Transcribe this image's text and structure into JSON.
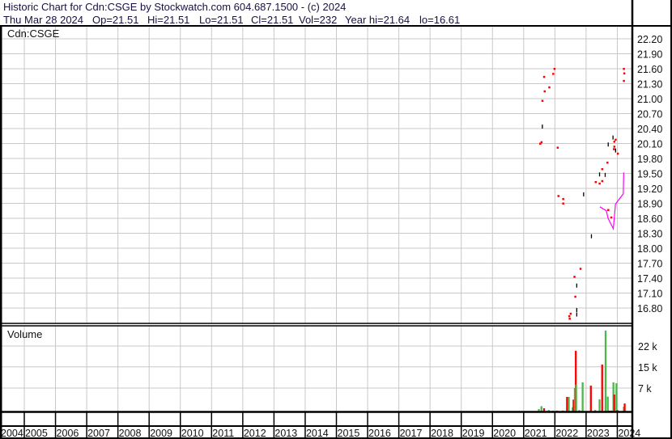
{
  "header": {
    "title": "Historic Chart for Cdn:CSGE by Stockwatch.com 604.687.1500 - (c) 2024",
    "date": "Thu Mar 28 2024",
    "open": "Op=21.51",
    "high": "Hi=21.51",
    "low": "Lo=21.51",
    "close": "Cl=21.51",
    "volume": "Vol=232",
    "year_high": "Year hi=21.64",
    "year_low": "lo=16.61"
  },
  "chart_data": [
    {
      "type": "scatter",
      "title": "Cdn:CSGE",
      "ylim": [
        16.5,
        22.3
      ],
      "y_ticks": [
        "22.20",
        "21.90",
        "21.60",
        "21.30",
        "21.00",
        "20.70",
        "20.40",
        "20.10",
        "19.80",
        "19.50",
        "19.20",
        "18.90",
        "18.60",
        "18.30",
        "18.00",
        "17.70",
        "17.40",
        "17.10",
        "16.80"
      ],
      "grid": true,
      "axis_position": "right",
      "colors": {
        "down": "#ff0000",
        "up": "#000000",
        "average": "#ff00ff"
      },
      "points": [
        {
          "date": "2021-07-10",
          "price": 20.1,
          "color": "down"
        },
        {
          "date": "2021-07-25",
          "price": 20.13,
          "color": "down"
        },
        {
          "date": "2021-08-05",
          "price": 20.44,
          "color": "up"
        },
        {
          "date": "2021-08-05",
          "price": 20.96,
          "color": "down"
        },
        {
          "date": "2021-08-25",
          "price": 21.44,
          "color": "down"
        },
        {
          "date": "2021-09-01",
          "price": 21.15,
          "color": "down"
        },
        {
          "date": "2021-10-25",
          "price": 21.23,
          "color": "down"
        },
        {
          "date": "2021-12-10",
          "price": 21.5,
          "color": "down"
        },
        {
          "date": "2021-12-25",
          "price": 21.6,
          "color": "down"
        },
        {
          "date": "2022-02-01",
          "price": 20.02,
          "color": "down"
        },
        {
          "date": "2022-02-10",
          "price": 19.05,
          "color": "down"
        },
        {
          "date": "2022-04-05",
          "price": 18.99,
          "color": "down"
        },
        {
          "date": "2022-04-05",
          "price": 18.9,
          "color": "down"
        },
        {
          "date": "2022-06-15",
          "price": 16.64,
          "color": "down"
        },
        {
          "date": "2022-06-20",
          "price": 16.59,
          "color": "down"
        },
        {
          "date": "2022-07-01",
          "price": 16.69,
          "color": "down"
        },
        {
          "date": "2022-08-15",
          "price": 17.43,
          "color": "down"
        },
        {
          "date": "2022-08-25",
          "price": 17.03,
          "color": "down"
        },
        {
          "date": "2022-09-12",
          "price": 17.25,
          "color": "up"
        },
        {
          "date": "2022-09-12",
          "price": 16.76,
          "color": "up"
        },
        {
          "date": "2022-09-12",
          "price": 16.67,
          "color": "up"
        },
        {
          "date": "2022-10-25",
          "price": 17.59,
          "color": "down"
        },
        {
          "date": "2022-12-01",
          "price": 19.08,
          "color": "up"
        },
        {
          "date": "2023-03-01",
          "price": 18.24,
          "color": "up"
        },
        {
          "date": "2023-04-20",
          "price": 19.33,
          "color": "down"
        },
        {
          "date": "2023-06-05",
          "price": 19.3,
          "color": "down"
        },
        {
          "date": "2023-06-05",
          "price": 19.48,
          "color": "up"
        },
        {
          "date": "2023-07-05",
          "price": 19.35,
          "color": "down"
        },
        {
          "date": "2023-07-05",
          "price": 19.59,
          "color": "down"
        },
        {
          "date": "2023-08-10",
          "price": 19.47,
          "color": "up"
        },
        {
          "date": "2023-09-05",
          "price": 19.72,
          "color": "down"
        },
        {
          "date": "2023-09-15",
          "price": 20.08,
          "color": "up"
        },
        {
          "date": "2023-09-15",
          "price": 18.77,
          "color": "down"
        },
        {
          "date": "2023-10-20",
          "price": 18.62,
          "color": "down"
        },
        {
          "date": "2023-11-10",
          "price": 20.22,
          "color": "up"
        },
        {
          "date": "2023-11-20",
          "price": 19.99,
          "color": "down"
        },
        {
          "date": "2023-11-25",
          "price": 20.14,
          "color": "down"
        },
        {
          "date": "2023-11-25",
          "price": 20.04,
          "color": "down"
        },
        {
          "date": "2023-12-10",
          "price": 20.18,
          "color": "down"
        },
        {
          "date": "2023-12-10",
          "price": 19.96,
          "color": "up"
        },
        {
          "date": "2024-01-05",
          "price": 19.9,
          "color": "down"
        },
        {
          "date": "2024-03-15",
          "price": 21.6,
          "color": "down"
        },
        {
          "date": "2024-03-20",
          "price": 21.51,
          "color": "down"
        },
        {
          "date": "2024-03-15",
          "price": 21.36,
          "color": "down"
        }
      ],
      "average_line": [
        {
          "date": "2023-06-10",
          "price": 18.83
        },
        {
          "date": "2023-08-25",
          "price": 18.75
        },
        {
          "date": "2023-09-15",
          "price": 18.6
        },
        {
          "date": "2023-10-10",
          "price": 18.51
        },
        {
          "date": "2023-11-15",
          "price": 18.39
        },
        {
          "date": "2023-12-10",
          "price": 18.88
        },
        {
          "date": "2023-12-25",
          "price": 18.92
        },
        {
          "date": "2024-03-10",
          "price": 19.09
        },
        {
          "date": "2024-03-15",
          "price": 19.52
        }
      ]
    },
    {
      "type": "bar",
      "title": "Volume",
      "y_ticks": [
        "22 k",
        "15 k",
        "7 k"
      ],
      "y_tick_values": [
        22000,
        15000,
        7000
      ],
      "ylim": [
        0,
        29000
      ],
      "bars": [
        {
          "date": "2021-06-25",
          "value": 800,
          "color": "up"
        },
        {
          "date": "2021-07-25",
          "value": 1800,
          "color": "up"
        },
        {
          "date": "2021-08-25",
          "value": 1100,
          "color": "down"
        },
        {
          "date": "2021-10-20",
          "value": 500,
          "color": "up"
        },
        {
          "date": "2021-12-05",
          "value": 300,
          "color": "up"
        },
        {
          "date": "2022-01-25",
          "value": 300,
          "color": "down"
        },
        {
          "date": "2022-04-01",
          "value": 300,
          "color": "down"
        },
        {
          "date": "2022-05-20",
          "value": 4900,
          "color": "down"
        },
        {
          "date": "2022-06-10",
          "value": 4900,
          "color": "up"
        },
        {
          "date": "2022-07-25",
          "value": 1400,
          "color": "up"
        },
        {
          "date": "2022-08-05",
          "value": 4000,
          "color": "down"
        },
        {
          "date": "2022-08-20",
          "value": 7900,
          "color": "up"
        },
        {
          "date": "2022-09-01",
          "value": 20400,
          "color": "down"
        },
        {
          "date": "2022-09-05",
          "value": 9000,
          "color": "up"
        },
        {
          "date": "2022-10-10",
          "value": 500,
          "color": "up"
        },
        {
          "date": "2022-11-20",
          "value": 9800,
          "color": "up"
        },
        {
          "date": "2023-02-25",
          "value": 8700,
          "color": "down"
        },
        {
          "date": "2023-04-15",
          "value": 500,
          "color": "up"
        },
        {
          "date": "2023-06-05",
          "value": 4100,
          "color": "up"
        },
        {
          "date": "2023-07-05",
          "value": 15800,
          "color": "down"
        },
        {
          "date": "2023-08-15",
          "value": 27200,
          "color": "up"
        },
        {
          "date": "2023-09-10",
          "value": 5000,
          "color": "up"
        },
        {
          "date": "2023-09-25",
          "value": 300,
          "color": "down"
        },
        {
          "date": "2023-10-20",
          "value": 300,
          "color": "down"
        },
        {
          "date": "2023-11-15",
          "value": 9800,
          "color": "up"
        },
        {
          "date": "2023-11-25",
          "value": 5700,
          "color": "down"
        },
        {
          "date": "2023-12-20",
          "value": 9500,
          "color": "up"
        },
        {
          "date": "2024-01-01",
          "value": 500,
          "color": "down"
        },
        {
          "date": "2024-03-15",
          "value": 1600,
          "color": "up"
        },
        {
          "date": "2024-03-25",
          "value": 2700,
          "color": "down"
        }
      ],
      "bar_colors": {
        "up": "#4cb84c",
        "down": "#ff0000"
      }
    }
  ],
  "x_axis": {
    "labels": [
      "2004",
      "2005",
      "2006",
      "2007",
      "2008",
      "2009",
      "2010",
      "2011",
      "2012",
      "2013",
      "2014",
      "2015",
      "2016",
      "2017",
      "2018",
      "2019",
      "2020",
      "2021",
      "2022",
      "2023",
      "2024"
    ]
  }
}
